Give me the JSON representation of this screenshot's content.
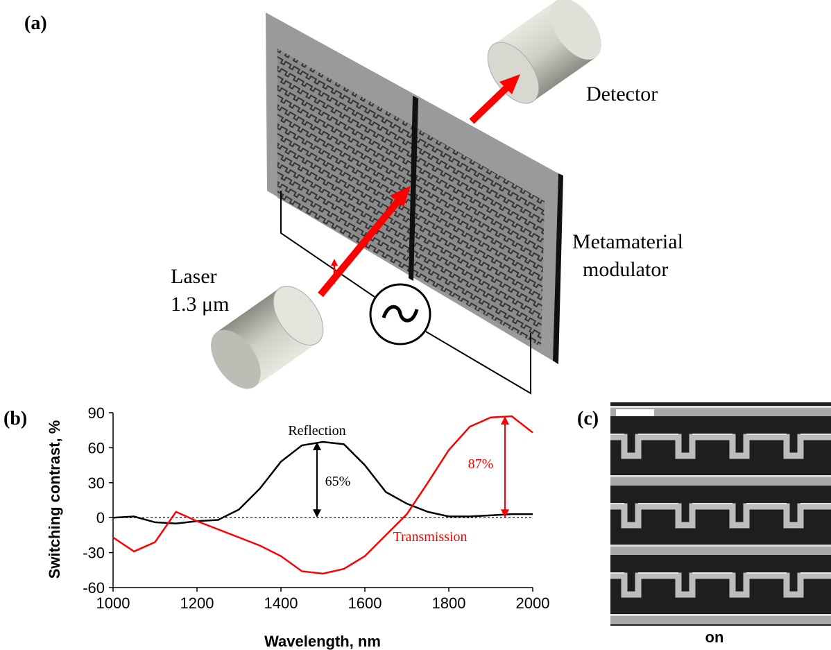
{
  "panel_a": {
    "label": "(a)",
    "detector": "Detector",
    "modulator": [
      "Metamaterial",
      "modulator"
    ],
    "laser": [
      "Laser",
      "1.3 μm"
    ]
  },
  "panel_c": {
    "label": "(c)",
    "caption": "on"
  },
  "chart_data": {
    "type": "line",
    "panel_label": "(b)",
    "x_label": "Wavelength, nm",
    "y_label": "Switching contrast, %",
    "x": [
      1000,
      1050,
      1100,
      1150,
      1200,
      1250,
      1300,
      1350,
      1400,
      1450,
      1500,
      1550,
      1600,
      1650,
      1700,
      1750,
      1800,
      1850,
      1900,
      1950,
      2000
    ],
    "series": [
      {
        "name": "Reflection",
        "color": "#000000",
        "values": [
          0,
          1,
          -4,
          -5,
          -3,
          -2,
          7,
          25,
          48,
          62,
          65,
          63,
          45,
          22,
          12,
          5,
          1,
          1,
          2,
          3,
          3
        ]
      },
      {
        "name": "Transmission",
        "color": "#ff0000",
        "values": [
          -17,
          -29,
          -21,
          5,
          -3,
          -10,
          -17,
          -24,
          -33,
          -46,
          -48,
          -44,
          -33,
          -15,
          3,
          30,
          58,
          78,
          86,
          87,
          73
        ]
      }
    ],
    "arrows": [
      {
        "label": "65%",
        "value": 65,
        "color": "#000000"
      },
      {
        "label": "87%",
        "value": 87,
        "color": "#ff0000"
      }
    ],
    "xlim": [
      1000,
      2000
    ],
    "xticks": [
      1000,
      1200,
      1400,
      1600,
      1800,
      2000
    ],
    "ylim": [
      -60,
      90
    ],
    "yticks": [
      -60,
      -30,
      0,
      30,
      60,
      90
    ],
    "zero_line": true,
    "grid": false
  }
}
